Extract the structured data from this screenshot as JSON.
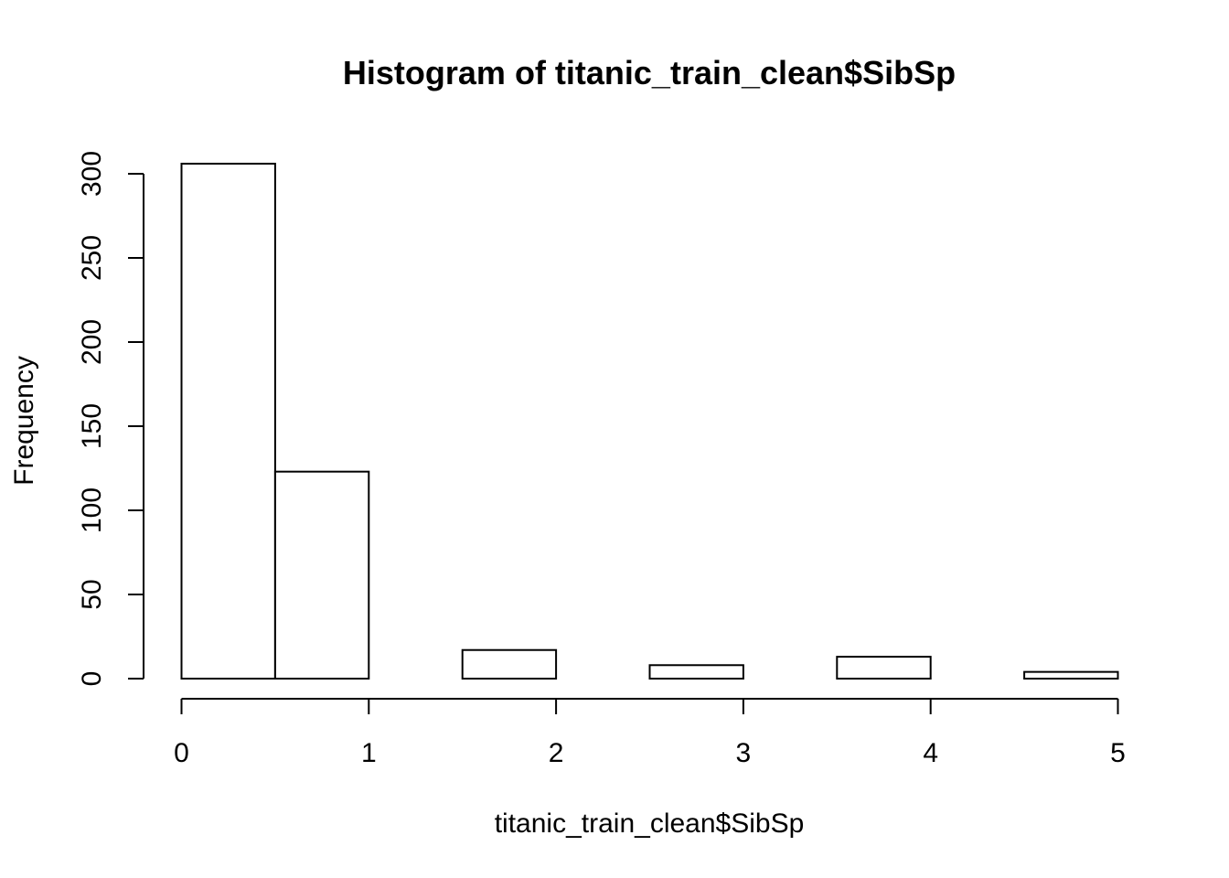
{
  "chart_data": {
    "type": "bar",
    "title": "Histogram of titanic_train_clean$SibSp",
    "xlabel": "titanic_train_clean$SibSp",
    "ylabel": "Frequency",
    "xlim": [
      0,
      5
    ],
    "ylim": [
      0,
      300
    ],
    "x_ticks": [
      0,
      1,
      2,
      3,
      4,
      5
    ],
    "y_ticks": [
      0,
      50,
      100,
      150,
      200,
      250,
      300
    ],
    "bins": [
      {
        "start": 0.0,
        "end": 0.5,
        "count": 306
      },
      {
        "start": 0.5,
        "end": 1.0,
        "count": 123
      },
      {
        "start": 1.0,
        "end": 1.5,
        "count": 0
      },
      {
        "start": 1.5,
        "end": 2.0,
        "count": 17
      },
      {
        "start": 2.0,
        "end": 2.5,
        "count": 0
      },
      {
        "start": 2.5,
        "end": 3.0,
        "count": 8
      },
      {
        "start": 3.0,
        "end": 3.5,
        "count": 0
      },
      {
        "start": 3.5,
        "end": 4.0,
        "count": 13
      },
      {
        "start": 4.0,
        "end": 4.5,
        "count": 0
      },
      {
        "start": 4.5,
        "end": 5.0,
        "count": 4
      }
    ],
    "grid": false,
    "legend": "none"
  }
}
